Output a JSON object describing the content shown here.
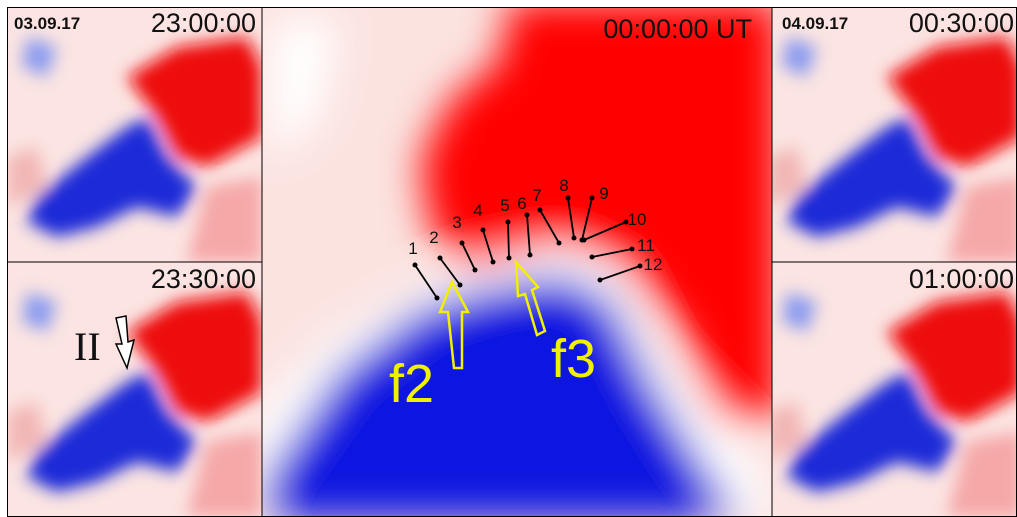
{
  "panels": [
    {
      "date": "03.09.17",
      "time": "23:00:00"
    },
    {
      "time": "23:30:00",
      "marker": "II"
    },
    {
      "time": "00:00:00 UT",
      "features": [
        "f2",
        "f3"
      ]
    },
    {
      "date": "04.09.17",
      "time": "00:30:00"
    },
    {
      "time": "01:00:00"
    }
  ],
  "slit_labels": [
    "1",
    "2",
    "3",
    "4",
    "5",
    "6",
    "7",
    "8",
    "9",
    "10",
    "11",
    "12"
  ]
}
